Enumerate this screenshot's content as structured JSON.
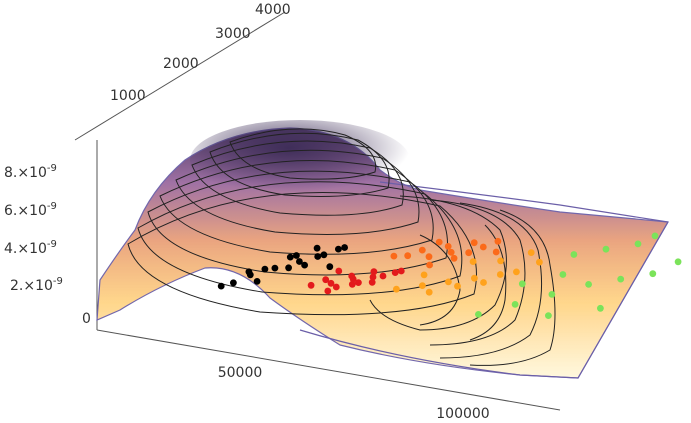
{
  "chart_data": {
    "type": "surface3d-scatter",
    "title": "",
    "xlabel": "",
    "ylabel": "",
    "zlabel": "",
    "x_ticks": [
      "50000",
      "100000"
    ],
    "y_ticks": [
      "1000",
      "2000",
      "3000",
      "4000"
    ],
    "z_ticks": [
      {
        "base": "0",
        "exp": ""
      },
      {
        "base": "2.×10",
        "exp": "-9"
      },
      {
        "base": "4.×10",
        "exp": "-9"
      },
      {
        "base": "6.×10",
        "exp": "-9"
      },
      {
        "base": "8.×10",
        "exp": "-9"
      }
    ],
    "surface": {
      "description_colormap": "light yellow (low) to orange to purple (high)",
      "contour_line_count": 14,
      "peak": {
        "x": 45000,
        "y": 2600,
        "z": 8.6e-09
      }
    },
    "series": [
      {
        "color": "#000000",
        "points": [
          [
            18000,
            1200
          ],
          [
            22000,
            1500
          ],
          [
            26000,
            1700
          ],
          [
            30000,
            1900
          ],
          [
            34000,
            2100
          ],
          [
            20000,
            1300
          ],
          [
            24000,
            1650
          ],
          [
            28000,
            2000
          ],
          [
            32000,
            1850
          ],
          [
            36000,
            2250
          ],
          [
            38000,
            1900
          ],
          [
            25000,
            1400
          ],
          [
            29000,
            1750
          ],
          [
            33000,
            2050
          ],
          [
            37000,
            2300
          ],
          [
            21000,
            1550
          ],
          [
            27000,
            1950
          ],
          [
            31000,
            2200
          ]
        ]
      },
      {
        "color": "#e31a1c",
        "points": [
          [
            38000,
            1500
          ],
          [
            42000,
            1600
          ],
          [
            46000,
            1750
          ],
          [
            50000,
            1850
          ],
          [
            44000,
            1550
          ],
          [
            48000,
            1700
          ],
          [
            52000,
            1900
          ],
          [
            40000,
            1650
          ],
          [
            45000,
            1800
          ],
          [
            49000,
            1950
          ],
          [
            43000,
            1450
          ],
          [
            47000,
            1650
          ],
          [
            51000,
            1750
          ],
          [
            54000,
            2000
          ],
          [
            41000,
            1850
          ],
          [
            55000,
            2050
          ]
        ]
      },
      {
        "color": "#fb6a1a",
        "points": [
          [
            50000,
            2300
          ],
          [
            55000,
            2500
          ],
          [
            60000,
            2650
          ],
          [
            65000,
            2800
          ],
          [
            58000,
            2400
          ],
          [
            62000,
            2550
          ],
          [
            68000,
            2750
          ],
          [
            53000,
            2350
          ],
          [
            57000,
            2700
          ],
          [
            64000,
            2450
          ],
          [
            70000,
            2900
          ],
          [
            60000,
            2250
          ],
          [
            66000,
            2600
          ],
          [
            72000,
            2700
          ]
        ]
      },
      {
        "color": "#ffa21c",
        "points": [
          [
            58000,
            1700
          ],
          [
            63000,
            1850
          ],
          [
            68000,
            2000
          ],
          [
            73000,
            2150
          ],
          [
            78000,
            2300
          ],
          [
            66000,
            1750
          ],
          [
            71000,
            1950
          ],
          [
            76000,
            2100
          ],
          [
            81000,
            2400
          ],
          [
            61000,
            2050
          ],
          [
            75000,
            2550
          ],
          [
            84000,
            2650
          ],
          [
            69000,
            2450
          ],
          [
            80000,
            2800
          ]
        ]
      },
      {
        "color": "#7be35a",
        "points": [
          [
            82000,
            1500
          ],
          [
            88000,
            1800
          ],
          [
            94000,
            2100
          ],
          [
            100000,
            2400
          ],
          [
            106000,
            2600
          ],
          [
            90000,
            2900
          ],
          [
            96000,
            3100
          ],
          [
            102000,
            3300
          ],
          [
            85000,
            2200
          ],
          [
            98000,
            1700
          ],
          [
            108000,
            2000
          ],
          [
            112000,
            2800
          ],
          [
            92000,
            2500
          ],
          [
            104000,
            3500
          ],
          [
            115000,
            3100
          ]
        ]
      }
    ]
  }
}
